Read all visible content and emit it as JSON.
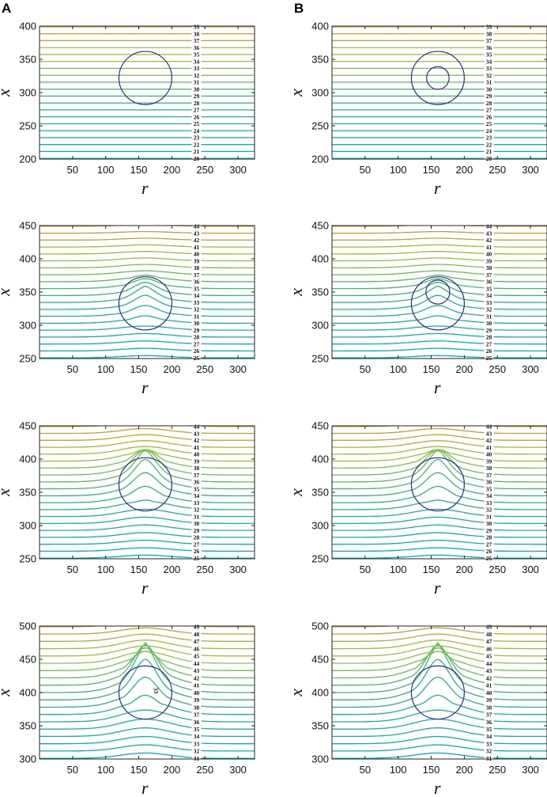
{
  "panel_letters": [
    "A",
    "B"
  ],
  "chart_data": [
    {
      "type": "contour",
      "col": 0,
      "row": 0,
      "xlabel": "r",
      "ylabel": "x",
      "xlim": [
        0,
        325
      ],
      "ylim": [
        200,
        400
      ],
      "xticks": [
        50,
        100,
        150,
        200,
        250,
        300
      ],
      "yticks": [
        200,
        250,
        300,
        350,
        400
      ],
      "levels": [
        20,
        39
      ],
      "bubble": {
        "center": [
          160,
          322
        ],
        "radius": 40
      },
      "inner_bubble": null,
      "distortion": 0,
      "labels": [
        "39",
        "38",
        "37",
        "36",
        "35",
        "34",
        "33",
        "32",
        "31",
        "30",
        "29",
        "28",
        "27",
        "26",
        "25",
        "24",
        "23",
        "22",
        "21",
        "20"
      ],
      "extra_labels": []
    },
    {
      "type": "contour",
      "col": 1,
      "row": 0,
      "xlabel": "r",
      "ylabel": "x",
      "xlim": [
        0,
        325
      ],
      "ylim": [
        200,
        400
      ],
      "xticks": [
        50,
        100,
        150,
        200,
        250,
        300
      ],
      "yticks": [
        200,
        250,
        300,
        350,
        400
      ],
      "levels": [
        20,
        39
      ],
      "bubble": {
        "center": [
          160,
          322
        ],
        "radius": 40
      },
      "inner_bubble": {
        "center": [
          160,
          322
        ],
        "radius": 17
      },
      "distortion": 0,
      "labels": [
        "39",
        "38",
        "37",
        "36",
        "35",
        "34",
        "33",
        "32",
        "31",
        "30",
        "29",
        "28",
        "27",
        "26",
        "25",
        "24",
        "23",
        "22",
        "21",
        "20"
      ],
      "extra_labels": []
    },
    {
      "type": "contour",
      "col": 0,
      "row": 1,
      "xlabel": "r",
      "ylabel": "x",
      "xlim": [
        0,
        325
      ],
      "ylim": [
        250,
        450
      ],
      "xticks": [
        50,
        100,
        150,
        200,
        250,
        300
      ],
      "yticks": [
        250,
        300,
        350,
        400,
        450
      ],
      "levels": [
        25,
        44
      ],
      "bubble": {
        "center": [
          160,
          333
        ],
        "radius": 40
      },
      "inner_bubble": null,
      "distortion": 1,
      "labels": [
        "44",
        "43",
        "42",
        "41",
        "40",
        "39",
        "38",
        "37",
        "36",
        "35",
        "34",
        "33",
        "32",
        "31",
        "30",
        "29",
        "28",
        "27",
        "26",
        "25"
      ],
      "extra_labels": []
    },
    {
      "type": "contour",
      "col": 1,
      "row": 1,
      "xlabel": "r",
      "ylabel": "x",
      "xlim": [
        0,
        325
      ],
      "ylim": [
        250,
        450
      ],
      "xticks": [
        50,
        100,
        150,
        200,
        250,
        300
      ],
      "yticks": [
        250,
        300,
        350,
        400,
        450
      ],
      "levels": [
        25,
        44
      ],
      "bubble": {
        "center": [
          160,
          333
        ],
        "radius": 40
      },
      "inner_bubble": {
        "center": [
          160,
          350
        ],
        "radius": 18
      },
      "distortion": 1,
      "labels": [
        "44",
        "43",
        "42",
        "41",
        "40",
        "39",
        "38",
        "37",
        "36",
        "35",
        "34",
        "33",
        "32",
        "31",
        "30",
        "29",
        "28",
        "27",
        "26",
        "25"
      ],
      "extra_labels": []
    },
    {
      "type": "contour",
      "col": 0,
      "row": 2,
      "xlabel": "r",
      "ylabel": "x",
      "xlim": [
        0,
        325
      ],
      "ylim": [
        250,
        450
      ],
      "xticks": [
        50,
        100,
        150,
        200,
        250,
        300
      ],
      "yticks": [
        250,
        300,
        350,
        400,
        450
      ],
      "levels": [
        25,
        44
      ],
      "bubble": {
        "center": [
          160,
          362
        ],
        "radius": 40
      },
      "inner_bubble": null,
      "distortion": 2,
      "labels": [
        "44",
        "43",
        "42",
        "41",
        "40",
        "39",
        "38",
        "37",
        "36",
        "35",
        "34",
        "33",
        "32",
        "31",
        "30",
        "29",
        "28",
        "27",
        "26",
        "25"
      ],
      "extra_labels": []
    },
    {
      "type": "contour",
      "col": 1,
      "row": 2,
      "xlabel": "r",
      "ylabel": "x",
      "xlim": [
        0,
        325
      ],
      "ylim": [
        250,
        450
      ],
      "xticks": [
        50,
        100,
        150,
        200,
        250,
        300
      ],
      "yticks": [
        250,
        300,
        350,
        400,
        450
      ],
      "levels": [
        25,
        44
      ],
      "bubble": {
        "center": [
          160,
          362
        ],
        "radius": 40
      },
      "inner_bubble": null,
      "distortion": 2,
      "labels": [
        "44",
        "43",
        "42",
        "41",
        "40",
        "39",
        "38",
        "37",
        "36",
        "35",
        "34",
        "33",
        "32",
        "31",
        "30",
        "29",
        "28",
        "27",
        "26",
        "25"
      ],
      "extra_labels": []
    },
    {
      "type": "contour",
      "col": 0,
      "row": 3,
      "xlabel": "r",
      "ylabel": "x",
      "xlim": [
        0,
        325
      ],
      "ylim": [
        300,
        500
      ],
      "xticks": [
        50,
        100,
        150,
        200,
        250,
        300
      ],
      "yticks": [
        300,
        350,
        400,
        450,
        500
      ],
      "levels": [
        31,
        49
      ],
      "bubble": {
        "center": [
          160,
          400
        ],
        "radius": 40
      },
      "inner_bubble": null,
      "distortion": 3,
      "labels": [
        "49",
        "48",
        "47",
        "46",
        "45",
        "44",
        "43",
        "42",
        "41",
        "40",
        "39",
        "38",
        "37",
        "36",
        "35",
        "34",
        "33",
        "32",
        "31"
      ],
      "extra_labels": [
        "33"
      ]
    },
    {
      "type": "contour",
      "col": 1,
      "row": 3,
      "xlabel": "r",
      "ylabel": "x",
      "xlim": [
        0,
        325
      ],
      "ylim": [
        300,
        500
      ],
      "xticks": [
        50,
        100,
        150,
        200,
        250,
        300
      ],
      "yticks": [
        300,
        350,
        400,
        450,
        500
      ],
      "levels": [
        31,
        49
      ],
      "bubble": {
        "center": [
          160,
          400
        ],
        "radius": 40
      },
      "inner_bubble": null,
      "distortion": 3,
      "labels": [
        "49",
        "48",
        "47",
        "46",
        "45",
        "44",
        "43",
        "42",
        "41",
        "40",
        "39",
        "38",
        "37",
        "36",
        "35",
        "34",
        "33",
        "32",
        "31"
      ],
      "extra_labels": []
    }
  ]
}
